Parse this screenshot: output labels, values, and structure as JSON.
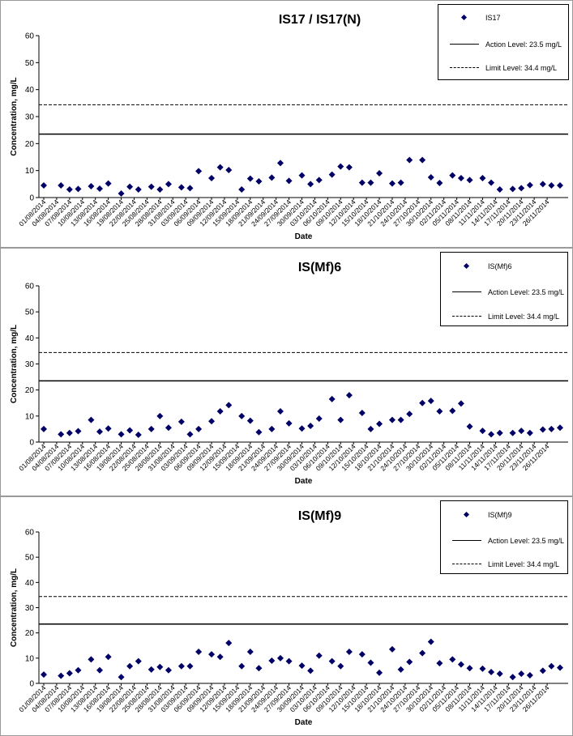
{
  "chart_data": [
    {
      "type": "scatter",
      "title": "IS17 / IS17(N)",
      "xlabel": "Date",
      "ylabel": "Concentration, mg/L",
      "ylim": [
        0,
        60
      ],
      "yticks": [
        "0",
        "10",
        "20",
        "30",
        "40",
        "50",
        "60"
      ],
      "xticks": [
        "01/08/2014",
        "04/08/2014",
        "07/08/2014",
        "10/08/2014",
        "13/08/2014",
        "16/08/2014",
        "19/08/2014",
        "22/08/2014",
        "25/08/2014",
        "28/08/2014",
        "31/08/2014",
        "03/09/2014",
        "06/09/2014",
        "09/09/2014",
        "12/09/2014",
        "15/09/2014",
        "18/09/2014",
        "21/09/2014",
        "24/09/2014",
        "27/09/2014",
        "30/09/2014",
        "03/10/2014",
        "06/10/2014",
        "09/10/2014",
        "12/10/2014",
        "15/10/2014",
        "18/10/2014",
        "21/10/2014",
        "24/10/2014",
        "27/10/2014",
        "30/10/2014",
        "02/11/2014",
        "05/11/2014",
        "08/11/2014",
        "11/11/2014",
        "14/11/2014",
        "17/11/2014",
        "20/11/2014",
        "23/11/2014",
        "26/11/2014"
      ],
      "xlim": [
        "2014-08-01",
        "2014-11-29"
      ],
      "grid": false,
      "legend_position": "top-right",
      "series": [
        {
          "name": "IS17",
          "type": "scatter",
          "color": "#000066",
          "points": [
            [
              "2014-08-01",
              4.5
            ],
            [
              "2014-08-05",
              4.5
            ],
            [
              "2014-08-07",
              3
            ],
            [
              "2014-08-09",
              3.2
            ],
            [
              "2014-08-12",
              4.2
            ],
            [
              "2014-08-14",
              3.3
            ],
            [
              "2014-08-16",
              5.2
            ],
            [
              "2014-08-19",
              1.5
            ],
            [
              "2014-08-21",
              4
            ],
            [
              "2014-08-23",
              3
            ],
            [
              "2014-08-26",
              4
            ],
            [
              "2014-08-28",
              3
            ],
            [
              "2014-08-30",
              5
            ],
            [
              "2014-09-02",
              3.8
            ],
            [
              "2014-09-04",
              3.5
            ],
            [
              "2014-09-06",
              9.8
            ],
            [
              "2014-09-09",
              7.2
            ],
            [
              "2014-09-11",
              11.2
            ],
            [
              "2014-09-13",
              10.2
            ],
            [
              "2014-09-16",
              3
            ],
            [
              "2014-09-18",
              7
            ],
            [
              "2014-09-20",
              6
            ],
            [
              "2014-09-23",
              7.4
            ],
            [
              "2014-09-25",
              12.8
            ],
            [
              "2014-09-27",
              6.2
            ],
            [
              "2014-09-30",
              8.2
            ],
            [
              "2014-10-02",
              5
            ],
            [
              "2014-10-04",
              6.5
            ],
            [
              "2014-10-07",
              8.5
            ],
            [
              "2014-10-09",
              11.5
            ],
            [
              "2014-10-11",
              11.2
            ],
            [
              "2014-10-14",
              5.5
            ],
            [
              "2014-10-16",
              5.5
            ],
            [
              "2014-10-18",
              9
            ],
            [
              "2014-10-21",
              5.2
            ],
            [
              "2014-10-23",
              5.5
            ],
            [
              "2014-10-25",
              13.9
            ],
            [
              "2014-10-28",
              13.9
            ],
            [
              "2014-10-30",
              7.5
            ],
            [
              "2014-11-01",
              5.4
            ],
            [
              "2014-11-04",
              8.2
            ],
            [
              "2014-11-06",
              7.2
            ],
            [
              "2014-11-08",
              6.5
            ],
            [
              "2014-11-11",
              7.2
            ],
            [
              "2014-11-13",
              5.5
            ],
            [
              "2014-11-15",
              3
            ],
            [
              "2014-11-18",
              3.2
            ],
            [
              "2014-11-20",
              3.5
            ],
            [
              "2014-11-22",
              4.6
            ],
            [
              "2014-11-25",
              5
            ],
            [
              "2014-11-27",
              4.5
            ],
            [
              "2014-11-29",
              4.5
            ]
          ]
        },
        {
          "name": "Action Level: 23.5 mg/L",
          "type": "hline",
          "value": 23.5,
          "style": "solid"
        },
        {
          "name": "Limit Level: 34.4 mg/L",
          "type": "hline",
          "value": 34.4,
          "style": "dashed"
        }
      ]
    },
    {
      "type": "scatter",
      "title": "IS(Mf)6",
      "xlabel": "Date",
      "ylabel": "Concentration, mg/L",
      "ylim": [
        0,
        60
      ],
      "yticks": [
        "0",
        "10",
        "20",
        "30",
        "40",
        "50",
        "60"
      ],
      "xticks": [
        "01/08/2014",
        "04/08/2014",
        "07/08/2014",
        "10/08/2014",
        "13/08/2014",
        "16/08/2014",
        "19/08/2014",
        "22/08/2014",
        "25/08/2014",
        "28/08/2014",
        "31/08/2014",
        "03/09/2014",
        "06/09/2014",
        "09/09/2014",
        "12/09/2014",
        "15/09/2014",
        "18/09/2014",
        "21/09/2014",
        "24/09/2014",
        "27/09/2014",
        "30/09/2014",
        "03/10/2014",
        "06/10/2014",
        "09/10/2014",
        "12/10/2014",
        "15/10/2014",
        "18/10/2014",
        "21/10/2014",
        "24/10/2014",
        "27/10/2014",
        "30/10/2014",
        "02/11/2014",
        "05/11/2014",
        "08/11/2014",
        "11/11/2014",
        "14/11/2014",
        "17/11/2014",
        "20/11/2014",
        "23/11/2014",
        "26/11/2014"
      ],
      "xlim": [
        "2014-08-01",
        "2014-11-29"
      ],
      "grid": false,
      "legend_position": "top-right",
      "series": [
        {
          "name": "IS(Mf)6",
          "type": "scatter",
          "color": "#000066",
          "points": [
            [
              "2014-08-01",
              5
            ],
            [
              "2014-08-05",
              3
            ],
            [
              "2014-08-07",
              3.5
            ],
            [
              "2014-08-09",
              4.2
            ],
            [
              "2014-08-12",
              8.5
            ],
            [
              "2014-08-14",
              4
            ],
            [
              "2014-08-16",
              5.2
            ],
            [
              "2014-08-19",
              3
            ],
            [
              "2014-08-21",
              4.5
            ],
            [
              "2014-08-23",
              2.8
            ],
            [
              "2014-08-26",
              5
            ],
            [
              "2014-08-28",
              10
            ],
            [
              "2014-08-30",
              5.5
            ],
            [
              "2014-09-02",
              7.8
            ],
            [
              "2014-09-04",
              3
            ],
            [
              "2014-09-06",
              5
            ],
            [
              "2014-09-09",
              8
            ],
            [
              "2014-09-11",
              11.8
            ],
            [
              "2014-09-13",
              14.2
            ],
            [
              "2014-09-16",
              10
            ],
            [
              "2014-09-18",
              8.2
            ],
            [
              "2014-09-20",
              3.8
            ],
            [
              "2014-09-23",
              5
            ],
            [
              "2014-09-25",
              11.8
            ],
            [
              "2014-09-27",
              7.2
            ],
            [
              "2014-09-30",
              5.2
            ],
            [
              "2014-10-02",
              6.2
            ],
            [
              "2014-10-04",
              9
            ],
            [
              "2014-10-07",
              16.5
            ],
            [
              "2014-10-09",
              8.5
            ],
            [
              "2014-10-11",
              18
            ],
            [
              "2014-10-14",
              11.2
            ],
            [
              "2014-10-16",
              5
            ],
            [
              "2014-10-18",
              7
            ],
            [
              "2014-10-21",
              8.5
            ],
            [
              "2014-10-23",
              8.5
            ],
            [
              "2014-10-25",
              10.8
            ],
            [
              "2014-10-28",
              15
            ],
            [
              "2014-10-30",
              15.8
            ],
            [
              "2014-11-01",
              11.8
            ],
            [
              "2014-11-04",
              12
            ],
            [
              "2014-11-06",
              14.8
            ],
            [
              "2014-11-08",
              6
            ],
            [
              "2014-11-11",
              4.3
            ],
            [
              "2014-11-13",
              3
            ],
            [
              "2014-11-15",
              3.5
            ],
            [
              "2014-11-18",
              3.5
            ],
            [
              "2014-11-20",
              4.3
            ],
            [
              "2014-11-22",
              3.5
            ],
            [
              "2014-11-25",
              4.8
            ],
            [
              "2014-11-27",
              5
            ],
            [
              "2014-11-29",
              5.5
            ]
          ]
        },
        {
          "name": "Action Level: 23.5 mg/L",
          "type": "hline",
          "value": 23.5,
          "style": "solid"
        },
        {
          "name": "Limit Level: 34.4 mg/L",
          "type": "hline",
          "value": 34.4,
          "style": "dashed"
        }
      ]
    },
    {
      "type": "scatter",
      "title": "IS(Mf)9",
      "xlabel": "Date",
      "ylabel": "Concentration, mg/L",
      "ylim": [
        0,
        60
      ],
      "yticks": [
        "0",
        "10",
        "20",
        "30",
        "40",
        "50",
        "60"
      ],
      "xticks": [
        "01/08/2014",
        "04/08/2014",
        "07/08/2014",
        "10/08/2014",
        "13/08/2014",
        "16/08/2014",
        "19/08/2014",
        "22/08/2014",
        "25/08/2014",
        "28/08/2014",
        "31/08/2014",
        "03/09/2014",
        "06/09/2014",
        "09/09/2014",
        "12/09/2014",
        "15/09/2014",
        "18/09/2014",
        "21/09/2014",
        "24/09/2014",
        "27/09/2014",
        "30/09/2014",
        "03/10/2014",
        "06/10/2014",
        "09/10/2014",
        "12/10/2014",
        "15/10/2014",
        "18/10/2014",
        "21/10/2014",
        "24/10/2014",
        "27/10/2014",
        "30/10/2014",
        "02/11/2014",
        "05/11/2014",
        "08/11/2014",
        "11/11/2014",
        "14/11/2014",
        "17/11/2014",
        "20/11/2014",
        "23/11/2014",
        "26/11/2014"
      ],
      "xlim": [
        "2014-08-01",
        "2014-11-29"
      ],
      "grid": false,
      "legend_position": "top-right",
      "series": [
        {
          "name": "IS(Mf)9",
          "type": "scatter",
          "color": "#000066",
          "points": [
            [
              "2014-08-01",
              3.5
            ],
            [
              "2014-08-05",
              3
            ],
            [
              "2014-08-07",
              4
            ],
            [
              "2014-08-09",
              5.2
            ],
            [
              "2014-08-12",
              9.5
            ],
            [
              "2014-08-14",
              5.2
            ],
            [
              "2014-08-16",
              10.5
            ],
            [
              "2014-08-19",
              2.5
            ],
            [
              "2014-08-21",
              6.8
            ],
            [
              "2014-08-23",
              8.8
            ],
            [
              "2014-08-26",
              5.5
            ],
            [
              "2014-08-28",
              6.5
            ],
            [
              "2014-08-30",
              5.2
            ],
            [
              "2014-09-02",
              6.8
            ],
            [
              "2014-09-04",
              6.8
            ],
            [
              "2014-09-06",
              12.5
            ],
            [
              "2014-09-09",
              11.5
            ],
            [
              "2014-09-11",
              10.5
            ],
            [
              "2014-09-13",
              16
            ],
            [
              "2014-09-16",
              6.8
            ],
            [
              "2014-09-18",
              12.5
            ],
            [
              "2014-09-20",
              6
            ],
            [
              "2014-09-23",
              9
            ],
            [
              "2014-09-25",
              10
            ],
            [
              "2014-09-27",
              8.8
            ],
            [
              "2014-09-30",
              7
            ],
            [
              "2014-10-02",
              5
            ],
            [
              "2014-10-04",
              11
            ],
            [
              "2014-10-07",
              8.8
            ],
            [
              "2014-10-09",
              6.8
            ],
            [
              "2014-10-11",
              12.5
            ],
            [
              "2014-10-14",
              11.5
            ],
            [
              "2014-10-16",
              8.2
            ],
            [
              "2014-10-18",
              4.2
            ],
            [
              "2014-10-21",
              13.5
            ],
            [
              "2014-10-23",
              5.5
            ],
            [
              "2014-10-25",
              8.5
            ],
            [
              "2014-10-28",
              12
            ],
            [
              "2014-10-30",
              16.5
            ],
            [
              "2014-11-01",
              8
            ],
            [
              "2014-11-04",
              9.5
            ],
            [
              "2014-11-06",
              7.5
            ],
            [
              "2014-11-08",
              6
            ],
            [
              "2014-11-11",
              5.8
            ],
            [
              "2014-11-13",
              4.5
            ],
            [
              "2014-11-15",
              3.8
            ],
            [
              "2014-11-18",
              2.5
            ],
            [
              "2014-11-20",
              3.8
            ],
            [
              "2014-11-22",
              3.2
            ],
            [
              "2014-11-25",
              5
            ],
            [
              "2014-11-27",
              6.8
            ],
            [
              "2014-11-29",
              6.2
            ]
          ]
        },
        {
          "name": "Action Level: 23.5 mg/L",
          "type": "hline",
          "value": 23.5,
          "style": "solid"
        },
        {
          "name": "Limit Level: 34.4 mg/L",
          "type": "hline",
          "value": 34.4,
          "style": "dashed"
        }
      ]
    }
  ]
}
